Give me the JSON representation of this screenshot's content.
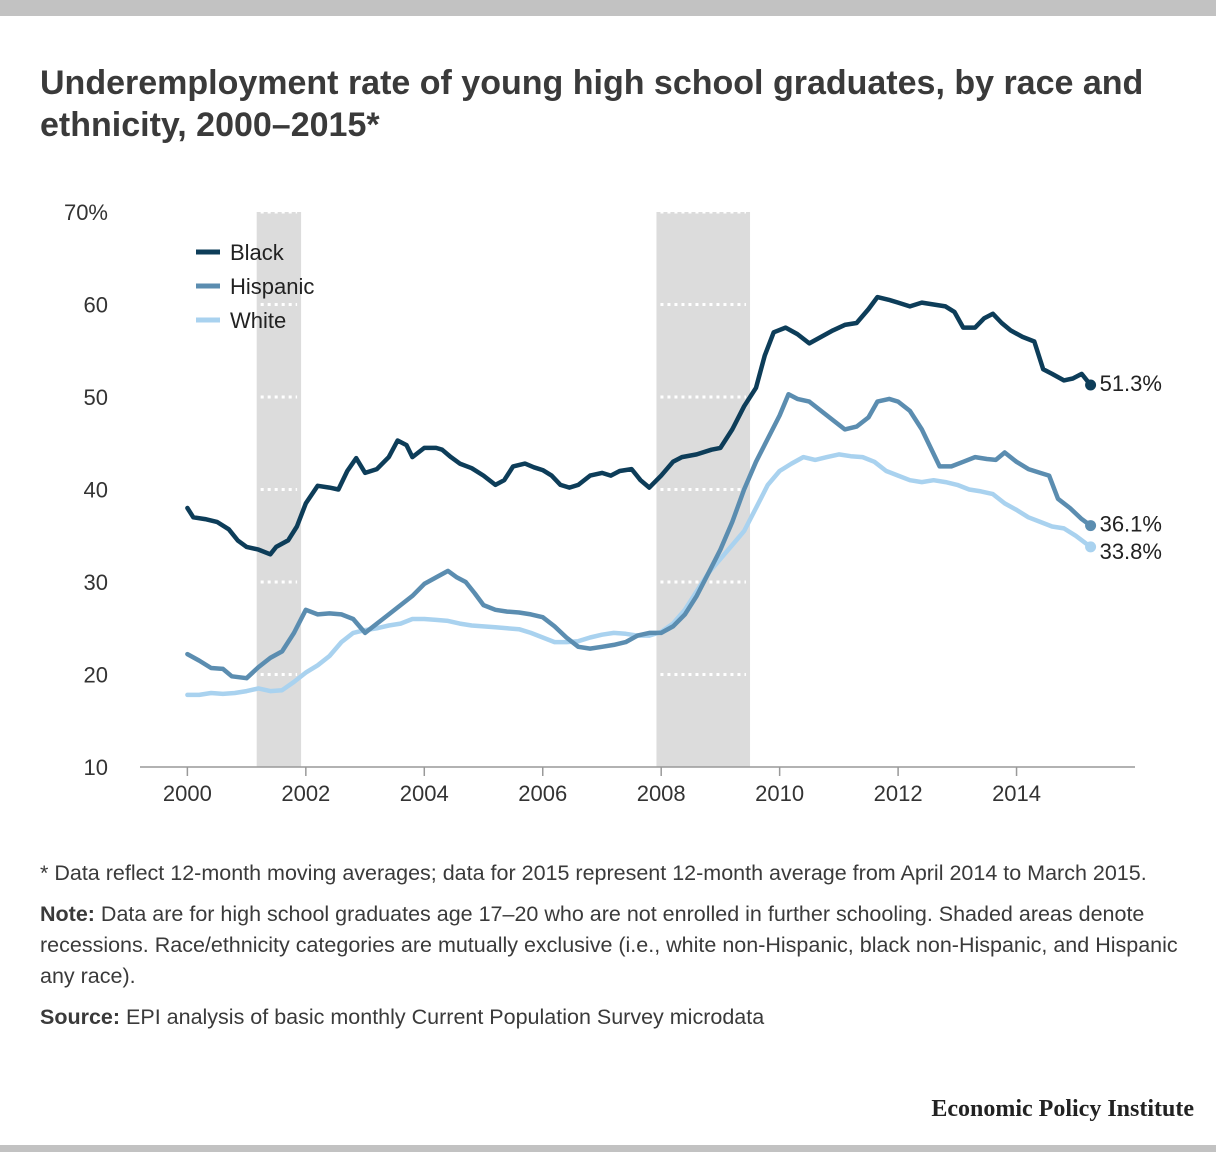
{
  "title": "Underemployment rate of young high school graduates, by race and ethnicity, 2000–2015*",
  "footnote": "* Data reflect 12-month moving averages; data for 2015 represent 12-month average from April 2014 to March 2015.",
  "note": {
    "label": "Note:",
    "text": " Data are for high school graduates age 17–20 who are not enrolled in further schooling. Shaded areas denote recessions. Race/ethnicity categories are mutually exclusive (i.e., white non-Hispanic, black non-Hispanic, and Hispanic any race)."
  },
  "source": {
    "label": "Source:",
    "text": " EPI analysis of basic monthly Current Population Survey microdata"
  },
  "brand": "Economic Policy Institute",
  "colors": {
    "black": "#0d3d59",
    "hispanic": "#5b8db0",
    "white": "#a9d2ef",
    "recession": "#dcdcdc",
    "axis": "#999999",
    "text": "#333333"
  },
  "chart_data": {
    "type": "line",
    "title": "Underemployment rate of young high school graduates, by race and ethnicity, 2000–2015*",
    "xlabel": "",
    "ylabel": "",
    "xlim": [
      1999.2,
      2016.0
    ],
    "ylim": [
      10,
      70
    ],
    "x_ticks": [
      2000,
      2002,
      2004,
      2006,
      2008,
      2010,
      2012,
      2014
    ],
    "x_tick_labels": [
      "2000",
      "2002",
      "2004",
      "2006",
      "2008",
      "2010",
      "2012",
      "2014"
    ],
    "y_ticks": [
      10,
      20,
      30,
      40,
      50,
      60,
      70
    ],
    "y_tick_labels": [
      "10",
      "20",
      "30",
      "40",
      "50",
      "60",
      "70%"
    ],
    "grid": false,
    "legend": "top-left",
    "recessions": [
      [
        2001.17,
        2001.92
      ],
      [
        2007.92,
        2009.5
      ]
    ],
    "series": [
      {
        "name": "Black",
        "color": "#0d3d59",
        "end_label": "51.3%",
        "points": [
          [
            2000.0,
            38
          ],
          [
            2000.1,
            37
          ],
          [
            2000.3,
            36.8
          ],
          [
            2000.5,
            36.5
          ],
          [
            2000.7,
            35.7
          ],
          [
            2000.85,
            34.5
          ],
          [
            2001.0,
            33.8
          ],
          [
            2001.2,
            33.5
          ],
          [
            2001.4,
            33
          ],
          [
            2001.5,
            33.8
          ],
          [
            2001.7,
            34.5
          ],
          [
            2001.85,
            36
          ],
          [
            2002.0,
            38.5
          ],
          [
            2002.2,
            40.4
          ],
          [
            2002.4,
            40.2
          ],
          [
            2002.55,
            40
          ],
          [
            2002.7,
            42
          ],
          [
            2002.85,
            43.4
          ],
          [
            2003.0,
            41.8
          ],
          [
            2003.2,
            42.2
          ],
          [
            2003.4,
            43.5
          ],
          [
            2003.55,
            45.3
          ],
          [
            2003.7,
            44.8
          ],
          [
            2003.8,
            43.5
          ],
          [
            2004.0,
            44.5
          ],
          [
            2004.2,
            44.5
          ],
          [
            2004.3,
            44.3
          ],
          [
            2004.45,
            43.5
          ],
          [
            2004.6,
            42.8
          ],
          [
            2004.8,
            42.3
          ],
          [
            2005.0,
            41.5
          ],
          [
            2005.2,
            40.5
          ],
          [
            2005.35,
            41
          ],
          [
            2005.5,
            42.5
          ],
          [
            2005.7,
            42.8
          ],
          [
            2005.85,
            42.4
          ],
          [
            2006.0,
            42.1
          ],
          [
            2006.15,
            41.5
          ],
          [
            2006.3,
            40.5
          ],
          [
            2006.45,
            40.2
          ],
          [
            2006.6,
            40.5
          ],
          [
            2006.8,
            41.5
          ],
          [
            2007.0,
            41.8
          ],
          [
            2007.15,
            41.5
          ],
          [
            2007.3,
            42
          ],
          [
            2007.5,
            42.2
          ],
          [
            2007.65,
            41
          ],
          [
            2007.8,
            40.2
          ],
          [
            2008.0,
            41.5
          ],
          [
            2008.2,
            43
          ],
          [
            2008.35,
            43.5
          ],
          [
            2008.6,
            43.8
          ],
          [
            2008.85,
            44.3
          ],
          [
            2009.0,
            44.5
          ],
          [
            2009.2,
            46.5
          ],
          [
            2009.4,
            49
          ],
          [
            2009.6,
            51
          ],
          [
            2009.75,
            54.5
          ],
          [
            2009.9,
            57
          ],
          [
            2010.1,
            57.5
          ],
          [
            2010.3,
            56.8
          ],
          [
            2010.5,
            55.8
          ],
          [
            2010.7,
            56.5
          ],
          [
            2010.9,
            57.2
          ],
          [
            2011.1,
            57.8
          ],
          [
            2011.3,
            58
          ],
          [
            2011.5,
            59.5
          ],
          [
            2011.65,
            60.8
          ],
          [
            2011.85,
            60.5
          ],
          [
            2012.0,
            60.2
          ],
          [
            2012.2,
            59.8
          ],
          [
            2012.4,
            60.2
          ],
          [
            2012.6,
            60
          ],
          [
            2012.8,
            59.8
          ],
          [
            2012.95,
            59.2
          ],
          [
            2013.1,
            57.5
          ],
          [
            2013.3,
            57.5
          ],
          [
            2013.45,
            58.5
          ],
          [
            2013.6,
            59
          ],
          [
            2013.75,
            58
          ],
          [
            2013.9,
            57.2
          ],
          [
            2014.1,
            56.5
          ],
          [
            2014.3,
            56
          ],
          [
            2014.45,
            53
          ],
          [
            2014.6,
            52.5
          ],
          [
            2014.8,
            51.8
          ],
          [
            2014.95,
            52
          ],
          [
            2015.1,
            52.5
          ],
          [
            2015.25,
            51.3
          ]
        ]
      },
      {
        "name": "Hispanic",
        "color": "#5b8db0",
        "end_label": "36.1%",
        "points": [
          [
            2000.0,
            22.2
          ],
          [
            2000.2,
            21.5
          ],
          [
            2000.4,
            20.7
          ],
          [
            2000.6,
            20.6
          ],
          [
            2000.75,
            19.8
          ],
          [
            2001.0,
            19.6
          ],
          [
            2001.2,
            20.8
          ],
          [
            2001.4,
            21.8
          ],
          [
            2001.6,
            22.5
          ],
          [
            2001.8,
            24.5
          ],
          [
            2002.0,
            27
          ],
          [
            2002.2,
            26.5
          ],
          [
            2002.4,
            26.6
          ],
          [
            2002.6,
            26.5
          ],
          [
            2002.8,
            26
          ],
          [
            2003.0,
            24.5
          ],
          [
            2003.2,
            25.5
          ],
          [
            2003.4,
            26.5
          ],
          [
            2003.6,
            27.5
          ],
          [
            2003.8,
            28.5
          ],
          [
            2004.0,
            29.8
          ],
          [
            2004.2,
            30.5
          ],
          [
            2004.4,
            31.2
          ],
          [
            2004.55,
            30.5
          ],
          [
            2004.7,
            30
          ],
          [
            2004.85,
            28.8
          ],
          [
            2005.0,
            27.5
          ],
          [
            2005.2,
            27
          ],
          [
            2005.4,
            26.8
          ],
          [
            2005.6,
            26.7
          ],
          [
            2005.8,
            26.5
          ],
          [
            2006.0,
            26.2
          ],
          [
            2006.2,
            25.2
          ],
          [
            2006.4,
            24
          ],
          [
            2006.6,
            23
          ],
          [
            2006.8,
            22.8
          ],
          [
            2007.0,
            23
          ],
          [
            2007.2,
            23.2
          ],
          [
            2007.4,
            23.5
          ],
          [
            2007.6,
            24.2
          ],
          [
            2007.8,
            24.5
          ],
          [
            2008.0,
            24.5
          ],
          [
            2008.2,
            25.2
          ],
          [
            2008.4,
            26.5
          ],
          [
            2008.6,
            28.5
          ],
          [
            2008.8,
            31
          ],
          [
            2009.0,
            33.5
          ],
          [
            2009.2,
            36.5
          ],
          [
            2009.4,
            40
          ],
          [
            2009.6,
            43
          ],
          [
            2009.8,
            45.5
          ],
          [
            2010.0,
            48
          ],
          [
            2010.15,
            50.3
          ],
          [
            2010.3,
            49.8
          ],
          [
            2010.5,
            49.5
          ],
          [
            2010.7,
            48.5
          ],
          [
            2010.9,
            47.5
          ],
          [
            2011.1,
            46.5
          ],
          [
            2011.3,
            46.8
          ],
          [
            2011.5,
            47.8
          ],
          [
            2011.65,
            49.5
          ],
          [
            2011.85,
            49.8
          ],
          [
            2012.0,
            49.5
          ],
          [
            2012.2,
            48.5
          ],
          [
            2012.4,
            46.5
          ],
          [
            2012.55,
            44.5
          ],
          [
            2012.7,
            42.5
          ],
          [
            2012.9,
            42.5
          ],
          [
            2013.1,
            43
          ],
          [
            2013.3,
            43.5
          ],
          [
            2013.5,
            43.3
          ],
          [
            2013.65,
            43.2
          ],
          [
            2013.8,
            44
          ],
          [
            2014.0,
            43
          ],
          [
            2014.2,
            42.2
          ],
          [
            2014.4,
            41.8
          ],
          [
            2014.55,
            41.5
          ],
          [
            2014.7,
            39
          ],
          [
            2014.9,
            38
          ],
          [
            2015.1,
            36.8
          ],
          [
            2015.25,
            36.1
          ]
        ]
      },
      {
        "name": "White",
        "color": "#a9d2ef",
        "end_label": "33.8%",
        "points": [
          [
            2000.0,
            17.8
          ],
          [
            2000.2,
            17.8
          ],
          [
            2000.4,
            18
          ],
          [
            2000.6,
            17.9
          ],
          [
            2000.8,
            18
          ],
          [
            2001.0,
            18.2
          ],
          [
            2001.2,
            18.5
          ],
          [
            2001.4,
            18.2
          ],
          [
            2001.6,
            18.3
          ],
          [
            2001.8,
            19.2
          ],
          [
            2002.0,
            20.2
          ],
          [
            2002.2,
            21
          ],
          [
            2002.4,
            22
          ],
          [
            2002.6,
            23.5
          ],
          [
            2002.8,
            24.5
          ],
          [
            2003.0,
            24.8
          ],
          [
            2003.2,
            25
          ],
          [
            2003.4,
            25.3
          ],
          [
            2003.6,
            25.5
          ],
          [
            2003.8,
            26
          ],
          [
            2004.0,
            26
          ],
          [
            2004.2,
            25.9
          ],
          [
            2004.4,
            25.8
          ],
          [
            2004.6,
            25.5
          ],
          [
            2004.8,
            25.3
          ],
          [
            2005.0,
            25.2
          ],
          [
            2005.2,
            25.1
          ],
          [
            2005.4,
            25
          ],
          [
            2005.6,
            24.9
          ],
          [
            2005.8,
            24.5
          ],
          [
            2006.0,
            24
          ],
          [
            2006.2,
            23.5
          ],
          [
            2006.4,
            23.5
          ],
          [
            2006.6,
            23.6
          ],
          [
            2006.8,
            24
          ],
          [
            2007.0,
            24.3
          ],
          [
            2007.2,
            24.5
          ],
          [
            2007.4,
            24.4
          ],
          [
            2007.6,
            24.2
          ],
          [
            2007.8,
            24.2
          ],
          [
            2008.0,
            24.6
          ],
          [
            2008.2,
            25.5
          ],
          [
            2008.4,
            27
          ],
          [
            2008.6,
            29
          ],
          [
            2008.8,
            31
          ],
          [
            2009.0,
            32.5
          ],
          [
            2009.2,
            34
          ],
          [
            2009.4,
            35.5
          ],
          [
            2009.6,
            38
          ],
          [
            2009.8,
            40.5
          ],
          [
            2010.0,
            42
          ],
          [
            2010.2,
            42.8
          ],
          [
            2010.4,
            43.5
          ],
          [
            2010.6,
            43.2
          ],
          [
            2010.8,
            43.5
          ],
          [
            2011.0,
            43.8
          ],
          [
            2011.2,
            43.6
          ],
          [
            2011.4,
            43.5
          ],
          [
            2011.6,
            43
          ],
          [
            2011.8,
            42
          ],
          [
            2012.0,
            41.5
          ],
          [
            2012.2,
            41
          ],
          [
            2012.4,
            40.8
          ],
          [
            2012.6,
            41
          ],
          [
            2012.8,
            40.8
          ],
          [
            2013.0,
            40.5
          ],
          [
            2013.2,
            40
          ],
          [
            2013.4,
            39.8
          ],
          [
            2013.6,
            39.5
          ],
          [
            2013.8,
            38.5
          ],
          [
            2014.0,
            37.8
          ],
          [
            2014.2,
            37
          ],
          [
            2014.4,
            36.5
          ],
          [
            2014.6,
            36
          ],
          [
            2014.8,
            35.8
          ],
          [
            2015.0,
            35
          ],
          [
            2015.25,
            33.8
          ]
        ]
      }
    ]
  }
}
